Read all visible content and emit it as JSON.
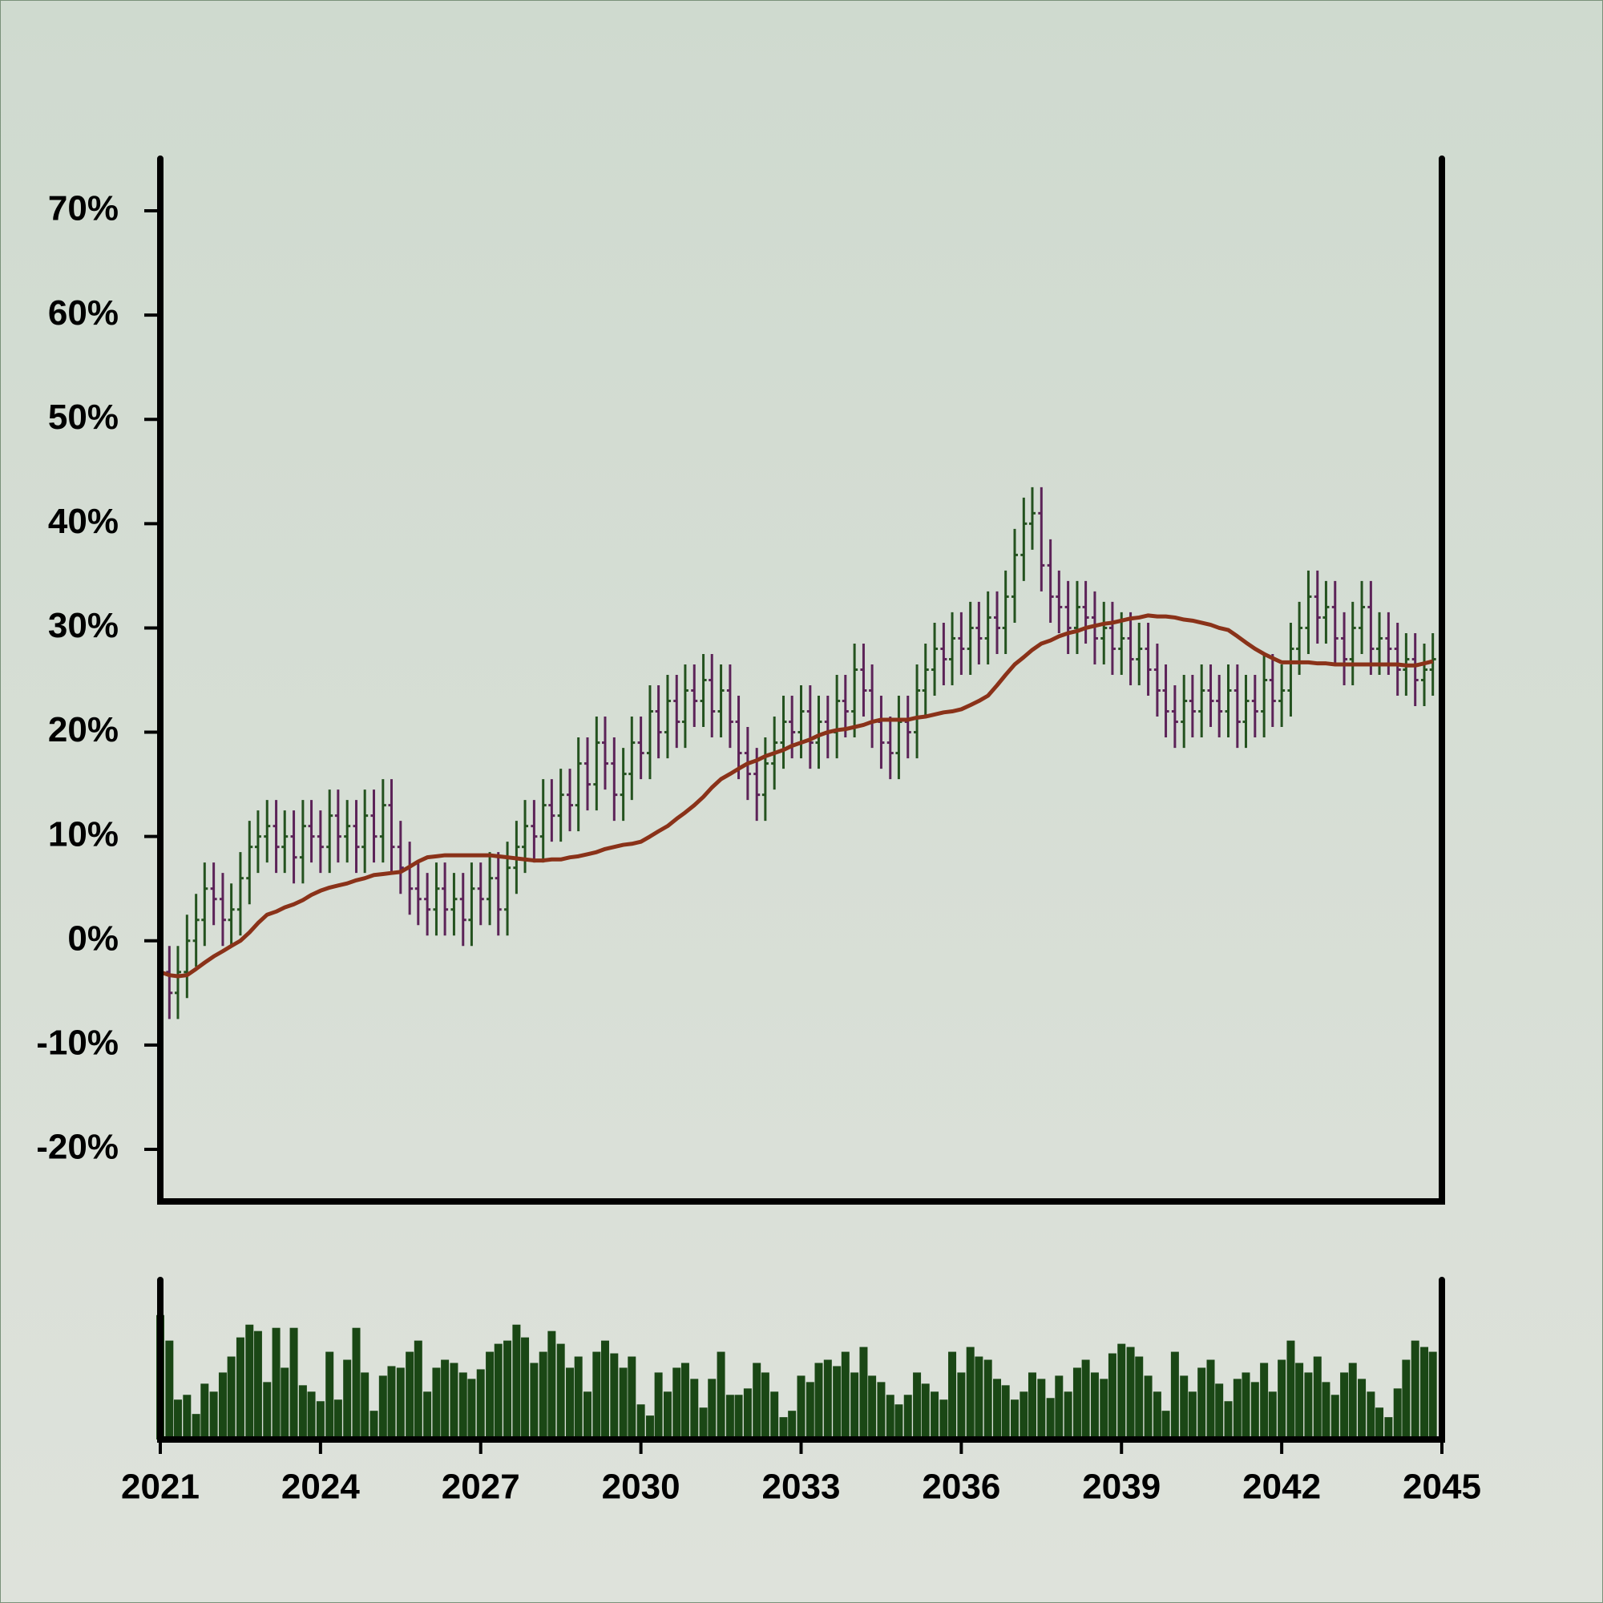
{
  "chart_data": {
    "type": "ohlc",
    "x": [
      2021,
      2021.17,
      2021.33,
      2021.5,
      2021.67,
      2021.83,
      2022,
      2022.17,
      2022.33,
      2022.5,
      2022.67,
      2022.83,
      2023,
      2023.17,
      2023.33,
      2023.5,
      2023.67,
      2023.83,
      2024,
      2024.17,
      2024.33,
      2024.5,
      2024.67,
      2024.83,
      2025,
      2025.17,
      2025.33,
      2025.5,
      2025.67,
      2025.83,
      2026,
      2026.17,
      2026.33,
      2026.5,
      2026.67,
      2026.83,
      2027,
      2027.17,
      2027.33,
      2027.5,
      2027.67,
      2027.83,
      2028,
      2028.17,
      2028.33,
      2028.5,
      2028.67,
      2028.83,
      2029,
      2029.17,
      2029.33,
      2029.5,
      2029.67,
      2029.83,
      2030,
      2030.17,
      2030.33,
      2030.5,
      2030.67,
      2030.83,
      2031,
      2031.17,
      2031.33,
      2031.5,
      2031.67,
      2031.83,
      2032,
      2032.17,
      2032.33,
      2032.5,
      2032.67,
      2032.83,
      2033,
      2033.17,
      2033.33,
      2033.5,
      2033.67,
      2033.83,
      2034,
      2034.17,
      2034.33,
      2034.5,
      2034.67,
      2034.83,
      2035,
      2035.17,
      2035.33,
      2035.5,
      2035.67,
      2035.83,
      2036,
      2036.17,
      2036.33,
      2036.5,
      2036.67,
      2036.83,
      2037,
      2037.17,
      2037.33,
      2037.5,
      2037.67,
      2037.83,
      2038,
      2038.17,
      2038.33,
      2038.5,
      2038.67,
      2038.83,
      2039,
      2039.17,
      2039.33,
      2039.5,
      2039.67,
      2039.83,
      2040,
      2040.17,
      2040.33,
      2040.5,
      2040.67,
      2040.83,
      2041,
      2041.17,
      2041.33,
      2041.5,
      2041.67,
      2041.83,
      2042,
      2042.17,
      2042.33,
      2042.5,
      2042.67,
      2042.83,
      2043,
      2043.17,
      2043.33,
      2043.5,
      2043.67,
      2043.83,
      2044,
      2044.17,
      2044.33,
      2044.5,
      2044.67,
      2044.83
    ],
    "open": [
      -1,
      -3,
      -5,
      -3,
      0,
      2,
      5,
      4,
      2,
      3,
      6,
      9,
      10,
      11,
      9,
      10,
      8,
      11,
      10,
      9,
      12,
      10,
      11,
      9,
      12,
      10,
      13,
      9,
      7,
      5,
      4,
      3,
      5,
      3,
      4,
      2,
      5,
      4,
      6,
      3,
      7,
      9,
      11,
      10,
      13,
      12,
      14,
      13,
      17,
      15,
      19,
      17,
      14,
      16,
      19,
      18,
      22,
      20,
      23,
      21,
      24,
      23,
      25,
      22,
      24,
      21,
      18,
      16,
      14,
      17,
      19,
      21,
      20,
      22,
      19,
      21,
      20,
      23,
      22,
      26,
      24,
      21,
      19,
      18,
      21,
      20,
      24,
      26,
      28,
      27,
      29,
      28,
      30,
      29,
      31,
      30,
      33,
      37,
      40,
      41,
      36,
      33,
      32,
      30,
      32,
      31,
      29,
      30,
      28,
      29,
      27,
      28,
      26,
      24,
      22,
      21,
      23,
      22,
      24,
      23,
      22,
      24,
      21,
      23,
      22,
      25,
      23,
      24,
      28,
      30,
      33,
      31,
      32,
      29,
      27,
      30,
      32,
      28,
      29,
      28,
      26,
      27,
      25,
      26
    ],
    "high": [
      1.5,
      -0.5,
      -0.5,
      2.5,
      4.5,
      7.5,
      7.5,
      6.5,
      5.5,
      8.5,
      11.5,
      12.5,
      13.5,
      13.5,
      12.5,
      12.5,
      13.5,
      13.5,
      12.5,
      14.5,
      14.5,
      13.5,
      13.5,
      14.5,
      14.5,
      15.5,
      15.5,
      11.5,
      9.5,
      7.5,
      6.5,
      7.5,
      7.5,
      6.5,
      6.5,
      7.5,
      7.5,
      8.5,
      8.5,
      9.5,
      11.5,
      13.5,
      13.5,
      15.5,
      15.5,
      16.5,
      16.5,
      19.5,
      19.5,
      21.5,
      21.5,
      19.5,
      18.5,
      21.5,
      21.5,
      24.5,
      24.5,
      25.5,
      25.5,
      26.5,
      26.5,
      27.5,
      27.5,
      26.5,
      26.5,
      23.5,
      20.5,
      18.5,
      19.5,
      21.5,
      23.5,
      23.5,
      24.5,
      24.5,
      23.5,
      23.5,
      25.5,
      25.5,
      28.5,
      28.5,
      26.5,
      23.5,
      21.5,
      23.5,
      23.5,
      26.5,
      28.5,
      30.5,
      30.5,
      31.5,
      31.5,
      32.5,
      32.5,
      33.5,
      33.5,
      35.5,
      39.5,
      42.5,
      43.5,
      43.5,
      38.5,
      35.5,
      34.5,
      34.5,
      34.5,
      33.5,
      32.5,
      32.5,
      31.5,
      31.5,
      30.5,
      30.5,
      28.5,
      26.5,
      24.5,
      25.5,
      25.5,
      26.5,
      26.5,
      25.5,
      26.5,
      26.5,
      25.5,
      25.5,
      27.5,
      27.5,
      26.5,
      30.5,
      32.5,
      35.5,
      35.5,
      34.5,
      34.5,
      31.5,
      32.5,
      34.5,
      34.5,
      31.5,
      31.5,
      30.5,
      29.5,
      29.5,
      28.5,
      29.5
    ],
    "low": [
      -5.5,
      -7.5,
      -7.5,
      -5.5,
      -2.5,
      -0.5,
      1.5,
      -0.5,
      -0.5,
      0.5,
      3.5,
      6.5,
      7.5,
      6.5,
      6.5,
      5.5,
      5.5,
      7.5,
      6.5,
      6.5,
      7.5,
      7.5,
      6.5,
      6.5,
      7.5,
      7.5,
      6.5,
      4.5,
      2.5,
      1.5,
      0.5,
      0.5,
      0.5,
      0.5,
      -0.5,
      -0.5,
      1.5,
      1.5,
      0.5,
      0.5,
      4.5,
      6.5,
      7.5,
      7.5,
      9.5,
      9.5,
      10.5,
      10.5,
      12.5,
      12.5,
      14.5,
      11.5,
      11.5,
      13.5,
      15.5,
      15.5,
      17.5,
      17.5,
      18.5,
      18.5,
      20.5,
      20.5,
      19.5,
      19.5,
      18.5,
      15.5,
      13.5,
      11.5,
      11.5,
      14.5,
      16.5,
      17.5,
      17.5,
      16.5,
      16.5,
      17.5,
      17.5,
      19.5,
      19.5,
      21.5,
      18.5,
      16.5,
      15.5,
      15.5,
      17.5,
      17.5,
      21.5,
      23.5,
      24.5,
      24.5,
      25.5,
      25.5,
      26.5,
      26.5,
      27.5,
      27.5,
      30.5,
      34.5,
      37.5,
      33.5,
      30.5,
      29.5,
      27.5,
      27.5,
      28.5,
      26.5,
      26.5,
      25.5,
      25.5,
      24.5,
      24.5,
      23.5,
      21.5,
      19.5,
      18.5,
      18.5,
      19.5,
      19.5,
      20.5,
      19.5,
      19.5,
      18.5,
      18.5,
      19.5,
      19.5,
      20.5,
      20.5,
      21.5,
      25.5,
      27.5,
      28.5,
      28.5,
      26.5,
      24.5,
      24.5,
      27.5,
      25.5,
      25.5,
      25.5,
      23.5,
      23.5,
      22.5,
      22.5,
      23.5
    ],
    "close": [
      -3,
      -5,
      -3,
      0,
      2,
      5,
      4,
      2,
      3,
      6,
      9,
      10,
      11,
      9,
      10,
      8,
      11,
      10,
      9,
      12,
      10,
      11,
      9,
      12,
      10,
      13,
      9,
      7,
      5,
      4,
      3,
      5,
      3,
      4,
      2,
      5,
      4,
      6,
      3,
      7,
      9,
      11,
      10,
      13,
      12,
      14,
      13,
      17,
      15,
      19,
      17,
      14,
      16,
      19,
      18,
      22,
      20,
      23,
      21,
      24,
      23,
      25,
      22,
      24,
      21,
      18,
      16,
      14,
      17,
      19,
      21,
      20,
      22,
      19,
      21,
      20,
      23,
      22,
      26,
      24,
      21,
      19,
      18,
      21,
      20,
      24,
      26,
      28,
      27,
      29,
      28,
      30,
      29,
      31,
      30,
      33,
      37,
      40,
      41,
      36,
      33,
      32,
      30,
      32,
      31,
      29,
      30,
      28,
      29,
      27,
      28,
      26,
      24,
      22,
      21,
      23,
      22,
      24,
      23,
      22,
      24,
      21,
      23,
      22,
      25,
      23,
      24,
      28,
      30,
      33,
      31,
      32,
      29,
      27,
      30,
      32,
      28,
      29,
      28,
      26,
      27,
      25,
      26,
      27
    ],
    "up_color": "#24521f",
    "down_color": "#5c2358",
    "moving_average": {
      "color": "#8a3219",
      "values": [
        -3,
        -3.3,
        -3.4,
        -3.3,
        -2.7,
        -2.1,
        -1.5,
        -1,
        -0.5,
        0,
        0.8,
        1.7,
        2.5,
        2.8,
        3.2,
        3.5,
        3.9,
        4.4,
        4.8,
        5.1,
        5.3,
        5.5,
        5.8,
        6,
        6.3,
        6.4,
        6.5,
        6.6,
        7.1,
        7.6,
        8,
        8.1,
        8.2,
        8.2,
        8.2,
        8.2,
        8.2,
        8.2,
        8.1,
        8,
        7.9,
        7.8,
        7.7,
        7.7,
        7.8,
        7.8,
        8,
        8.1,
        8.3,
        8.5,
        8.8,
        9,
        9.2,
        9.3,
        9.5,
        10,
        10.5,
        11,
        11.7,
        12.3,
        13,
        13.8,
        14.7,
        15.5,
        16,
        16.5,
        17,
        17.3,
        17.7,
        18,
        18.3,
        18.7,
        19,
        19.3,
        19.7,
        20,
        20.2,
        20.3,
        20.5,
        20.7,
        21,
        21.2,
        21.2,
        21.2,
        21.2,
        21.4,
        21.5,
        21.7,
        21.9,
        22,
        22.2,
        22.6,
        23,
        23.5,
        24.5,
        25.5,
        26.5,
        27.2,
        27.9,
        28.5,
        28.8,
        29.2,
        29.5,
        29.7,
        30,
        30.2,
        30.4,
        30.5,
        30.7,
        30.9,
        31,
        31.2,
        31.1,
        31.1,
        31,
        30.8,
        30.7,
        30.5,
        30.3,
        30,
        29.8,
        29.2,
        28.6,
        28,
        27.5,
        27.1,
        26.7,
        26.7,
        26.7,
        26.7,
        26.6,
        26.6,
        26.5,
        26.5,
        26.5,
        26.5,
        26.5,
        26.5,
        26.5,
        26.5,
        26.4,
        26.4,
        26.6,
        26.8
      ]
    },
    "volume": {
      "color": "#1a4715",
      "ylim": [
        0,
        100
      ],
      "values": [
        78,
        62,
        25,
        28,
        16,
        35,
        30,
        42,
        52,
        64,
        72,
        68,
        36,
        70,
        45,
        70,
        34,
        30,
        24,
        55,
        25,
        50,
        70,
        42,
        18,
        40,
        46,
        45,
        55,
        62,
        30,
        45,
        50,
        48,
        42,
        38,
        44,
        55,
        60,
        62,
        72,
        64,
        48,
        55,
        68,
        60,
        45,
        52,
        30,
        55,
        62,
        54,
        45,
        52,
        22,
        15,
        42,
        30,
        45,
        48,
        38,
        20,
        38,
        55,
        28,
        28,
        32,
        48,
        42,
        30,
        14,
        18,
        40,
        36,
        48,
        50,
        46,
        55,
        42,
        58,
        40,
        36,
        28,
        22,
        28,
        42,
        35,
        30,
        25,
        55,
        42,
        58,
        52,
        50,
        38,
        34,
        25,
        30,
        42,
        38,
        26,
        40,
        30,
        45,
        50,
        42,
        38,
        54,
        60,
        58,
        52,
        40,
        30,
        18,
        55,
        40,
        30,
        45,
        50,
        35,
        24,
        38,
        42,
        36,
        48,
        30,
        50,
        62,
        48,
        42,
        52,
        36,
        28,
        42,
        48,
        38,
        30,
        20,
        14,
        32,
        50,
        62,
        58,
        55
      ]
    },
    "xlim": [
      2021,
      2045
    ],
    "xticks": [
      2021,
      2024,
      2027,
      2030,
      2033,
      2036,
      2039,
      2042,
      2045
    ],
    "ylim": [
      -25,
      75
    ],
    "yticks": [
      {
        "value": -20,
        "label": "-20%"
      },
      {
        "value": -10,
        "label": "-10%"
      },
      {
        "value": 0,
        "label": "0%"
      },
      {
        "value": 10,
        "label": "10%"
      },
      {
        "value": 20,
        "label": "20%"
      },
      {
        "value": 30,
        "label": "30%"
      },
      {
        "value": 40,
        "label": "40%"
      },
      {
        "value": 50,
        "label": "50%"
      },
      {
        "value": 60,
        "label": "60%"
      },
      {
        "value": 70,
        "label": "70%"
      }
    ]
  }
}
